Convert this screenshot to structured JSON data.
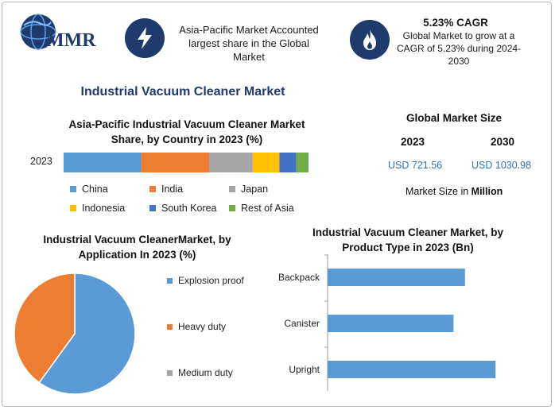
{
  "brand": {
    "name": "MMR",
    "logo_colors": [
      "#1f3b6e",
      "#5aa0e6"
    ]
  },
  "header": {
    "box1_text": "Asia-Pacific Market Accounted largest share in the Global Market",
    "box1_icon": "lightning-icon",
    "box2_title": "5.23% CAGR",
    "box2_text": "Global Market to grow at a CAGR of 5.23% during 2024-2030",
    "box2_icon": "flame-icon",
    "accent_color": "#1f3b6e"
  },
  "main_title": "Industrial Vacuum Cleaner Market",
  "market_size": {
    "title": "Global Market Size",
    "year1": "2023",
    "year2": "2030",
    "value1": "USD 721.56",
    "value2": "USD 1030.98",
    "unit_prefix": "Market Size in ",
    "unit_bold": "Million"
  },
  "chart_data": [
    {
      "type": "bar",
      "orientation": "horizontal-stacked",
      "title": "Asia-Pacific Industrial Vacuum Cleaner Market Share, by Country in 2023 (%)",
      "categories": [
        "2023"
      ],
      "series": [
        {
          "name": "China",
          "values": [
            32
          ],
          "color": "#5b9bd5"
        },
        {
          "name": "India",
          "values": [
            28
          ],
          "color": "#ed7d31"
        },
        {
          "name": "Japan",
          "values": [
            18
          ],
          "color": "#a5a5a5"
        },
        {
          "name": "Indonesia",
          "values": [
            11
          ],
          "color": "#ffc000"
        },
        {
          "name": "South Korea",
          "values": [
            7
          ],
          "color": "#4472c4"
        },
        {
          "name": "Rest of Asia",
          "values": [
            5
          ],
          "color": "#70ad47"
        }
      ],
      "legend": "bottom"
    },
    {
      "type": "pie",
      "title": "Industrial Vacuum CleanerMarket, by Application In 2023 (%)",
      "series": [
        {
          "name": "Explosion proof",
          "value": 60,
          "color": "#5b9bd5"
        },
        {
          "name": "Heavy duty",
          "value": 40,
          "color": "#ed7d31"
        },
        {
          "name": "Medium duty",
          "value": 0,
          "color": "#a5a5a5"
        }
      ],
      "legend": "right"
    },
    {
      "type": "bar",
      "orientation": "horizontal",
      "title": "Industrial Vacuum Cleaner Market, by Product Type in 2023 (Bn)",
      "categories": [
        "Backpack",
        "Canister",
        "Upright"
      ],
      "values": [
        0.72,
        0.66,
        0.88
      ],
      "color": "#5b9bd5",
      "xlim": [
        0,
        1
      ]
    }
  ]
}
